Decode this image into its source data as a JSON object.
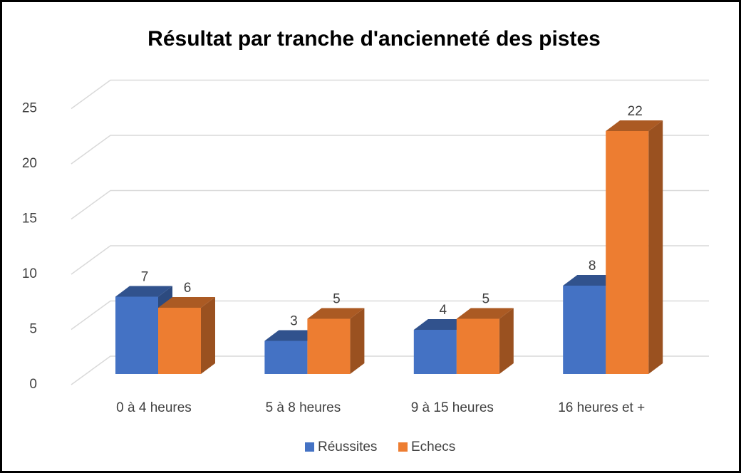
{
  "chart_data": {
    "type": "bar3d",
    "title": "Résultat par tranche d'ancienneté des pistes",
    "categories": [
      "0 à 4 heures",
      "5 à 8 heures",
      "9 à 15 heures",
      "16 heures et +"
    ],
    "series": [
      {
        "name": "Réussites",
        "color": "#4472c4",
        "values": [
          7,
          3,
          4,
          8
        ]
      },
      {
        "name": "Echecs",
        "color": "#ed7d31",
        "values": [
          6,
          5,
          5,
          22
        ]
      }
    ],
    "ylim": [
      0,
      25
    ],
    "yticks": [
      0,
      5,
      10,
      15,
      20,
      25
    ],
    "grid": true,
    "legend": "bottom"
  }
}
